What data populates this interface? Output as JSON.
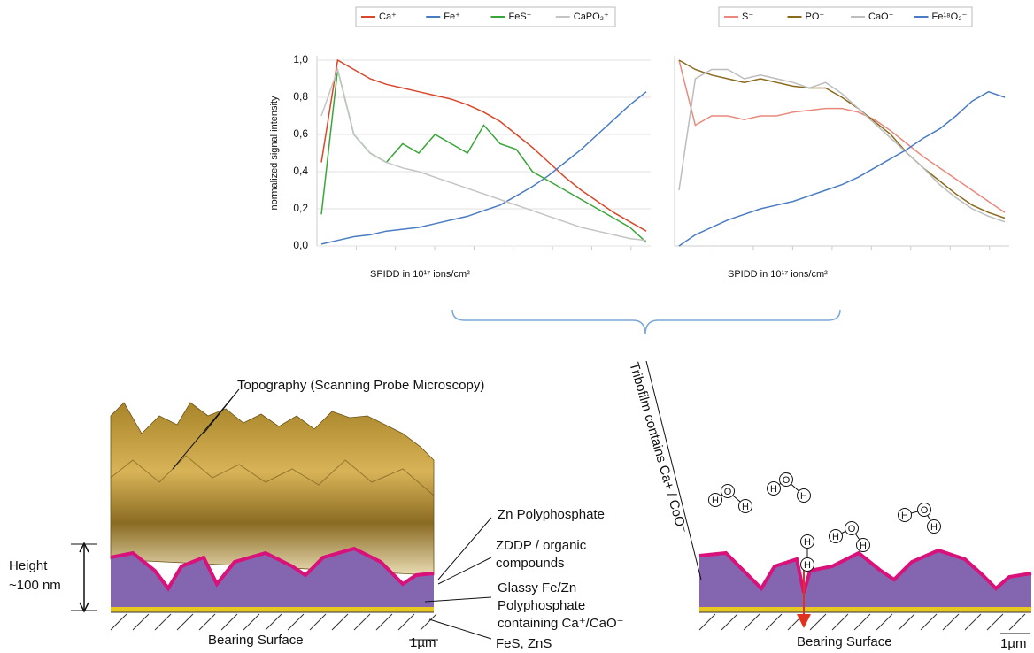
{
  "chart_data": [
    {
      "type": "line",
      "y_label": "normalized signal intensity",
      "x_label": "SPIDD in 10¹⁷ ions/cm²",
      "categories": [
        null,
        null,
        null,
        null,
        null,
        null,
        null,
        null,
        null,
        null,
        null,
        null,
        null,
        null,
        null,
        null,
        null,
        null,
        null,
        null,
        null
      ],
      "ylim": [
        0,
        1.0
      ],
      "yticks": [
        {
          "value": 0,
          "label": "0,0"
        },
        {
          "value": 0.2,
          "label": "0,2"
        },
        {
          "value": 0.4,
          "label": "0,4"
        },
        {
          "value": 0.6,
          "label": "0,6"
        },
        {
          "value": 0.8,
          "label": "0,8"
        },
        {
          "value": 1.0,
          "label": "1,0"
        }
      ],
      "grid": true,
      "series": [
        {
          "name": "Ca⁺",
          "color": "#d9472b",
          "values": [
            0.45,
            1.0,
            0.95,
            0.9,
            0.87,
            0.85,
            0.83,
            0.81,
            0.79,
            0.76,
            0.72,
            0.67,
            0.6,
            0.53,
            0.45,
            0.37,
            0.3,
            0.24,
            0.18,
            0.13,
            0.08
          ]
        },
        {
          "name": "Fe⁺",
          "color": "#4a7cc4",
          "values": [
            0.01,
            0.03,
            0.05,
            0.06,
            0.08,
            0.09,
            0.1,
            0.12,
            0.14,
            0.16,
            0.19,
            0.22,
            0.27,
            0.32,
            0.38,
            0.45,
            0.52,
            0.6,
            0.68,
            0.76,
            0.83
          ]
        },
        {
          "name": "FeS⁺",
          "color": "#3aa63a",
          "values": [
            0.17,
            0.95,
            0.6,
            0.5,
            0.45,
            0.55,
            0.5,
            0.6,
            0.55,
            0.5,
            0.65,
            0.55,
            0.52,
            0.4,
            0.35,
            0.3,
            0.25,
            0.2,
            0.15,
            0.1,
            0.02
          ]
        },
        {
          "name": "CaPO₂⁺",
          "color": "#c4c4c4",
          "values": [
            0.7,
            0.95,
            0.6,
            0.5,
            0.45,
            0.42,
            0.4,
            0.37,
            0.34,
            0.31,
            0.28,
            0.25,
            0.22,
            0.19,
            0.16,
            0.13,
            0.1,
            0.08,
            0.06,
            0.04,
            0.03
          ]
        }
      ]
    },
    {
      "type": "line",
      "x_label": "SPIDD in 10¹⁷ ions/cm²",
      "categories": [
        null,
        null,
        null,
        null,
        null,
        null,
        null,
        null,
        null,
        null,
        null,
        null,
        null,
        null,
        null,
        null,
        null,
        null,
        null,
        null,
        null
      ],
      "ylim": [
        0,
        1.0
      ],
      "series": [
        {
          "name": "S⁻",
          "color": "#e8897c",
          "values": [
            1.0,
            0.65,
            0.7,
            0.7,
            0.68,
            0.7,
            0.7,
            0.72,
            0.73,
            0.74,
            0.74,
            0.72,
            0.68,
            0.62,
            0.55,
            0.48,
            0.42,
            0.36,
            0.3,
            0.24,
            0.18
          ]
        },
        {
          "name": "PO⁻",
          "color": "#8a6a1e",
          "values": [
            1.0,
            0.95,
            0.92,
            0.9,
            0.88,
            0.9,
            0.88,
            0.86,
            0.85,
            0.85,
            0.8,
            0.74,
            0.67,
            0.6,
            0.5,
            0.42,
            0.35,
            0.28,
            0.22,
            0.18,
            0.15
          ]
        },
        {
          "name": "CaO⁻",
          "color": "#bdbdbd",
          "values": [
            0.3,
            0.9,
            0.95,
            0.95,
            0.9,
            0.92,
            0.9,
            0.88,
            0.85,
            0.88,
            0.82,
            0.74,
            0.66,
            0.58,
            0.5,
            0.42,
            0.33,
            0.26,
            0.2,
            0.16,
            0.13
          ]
        },
        {
          "name": "Fe¹⁸O₂⁻",
          "color": "#4a7cc4",
          "values": [
            0.0,
            0.06,
            0.1,
            0.14,
            0.17,
            0.2,
            0.22,
            0.24,
            0.27,
            0.3,
            0.33,
            0.37,
            0.42,
            0.47,
            0.52,
            0.58,
            0.63,
            0.7,
            0.78,
            0.83,
            0.8
          ]
        }
      ]
    }
  ],
  "diagram": {
    "topography": "Topography (Scanning Probe Microscopy)",
    "zn_polyphosphate": "Zn Polyphosphate",
    "zddp": [
      "ZDDP / organic",
      "compounds"
    ],
    "glassy": [
      "Glassy Fe/Zn",
      "Polyphosphate",
      "containing Ca⁺/CaO⁻"
    ],
    "fes": "FeS, ZnS",
    "height": [
      "Height",
      "~100 nm"
    ],
    "bearing_left": "Bearing Surface",
    "scale_left": "1µm",
    "tribofilm": "Tribofilm contains Ca+ / CoO⁻",
    "bearing_right": "Bearing Surface",
    "scale_right": "1µm",
    "atoms": {
      "h": "H",
      "o": "O"
    }
  }
}
